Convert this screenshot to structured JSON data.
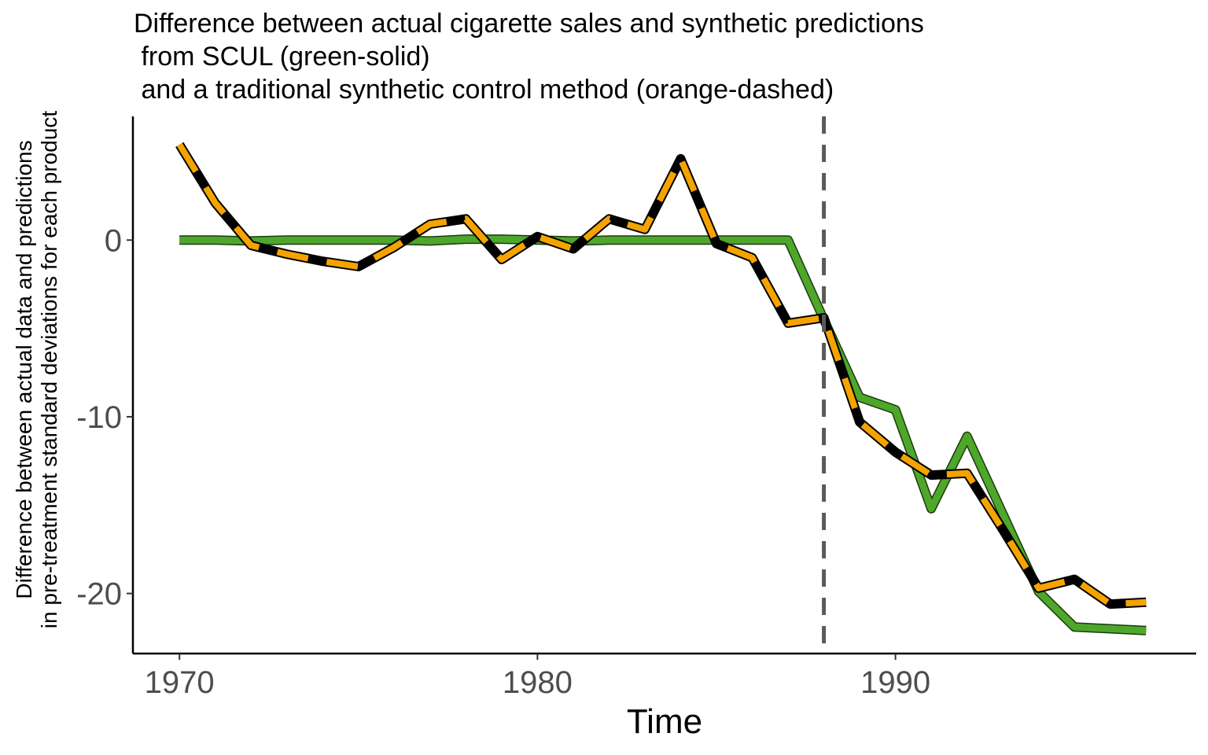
{
  "chart_data": {
    "type": "line",
    "title_lines": [
      "Difference between actual cigarette sales and synthetic predictions",
      " from SCUL (green-solid)",
      " and a traditional synthetic control method (orange-dashed)"
    ],
    "xlabel": "Time",
    "ylabel_lines": [
      "Difference between actual data and predictions",
      "in pre-treatment standard deviations for each product"
    ],
    "xlim": [
      1968.7,
      1998.4
    ],
    "ylim": [
      -23.4,
      7.0
    ],
    "x_ticks": [
      1970,
      1980,
      1990
    ],
    "y_ticks": [
      0,
      -10,
      -20
    ],
    "x_tick_labels": [
      "1970",
      "1980",
      "1990"
    ],
    "y_tick_labels": [
      "0",
      "-10",
      "-20"
    ],
    "treatment_line_x": 1988,
    "grid": false,
    "legend": "none",
    "colors": {
      "scul": "#4ea72a",
      "scul_outline": "#1a3a0d",
      "synth_dash": "#f5a300",
      "synth_base": "#000000",
      "treatment_line": "#5a5a5a",
      "tick_label": "#4d4d4d"
    },
    "x": [
      1970,
      1971,
      1972,
      1973,
      1974,
      1975,
      1976,
      1977,
      1978,
      1979,
      1980,
      1981,
      1982,
      1983,
      1984,
      1985,
      1986,
      1987,
      1988,
      1989,
      1990,
      1991,
      1992,
      1993,
      1994,
      1995,
      1996,
      1997
    ],
    "series": [
      {
        "id": "scul",
        "values": [
          0.0,
          0.0,
          -0.05,
          0.0,
          0.0,
          0.0,
          0.0,
          -0.05,
          0.05,
          0.05,
          0.0,
          -0.05,
          0.0,
          0.0,
          0.0,
          0.0,
          0.0,
          0.0,
          -4.5,
          -8.9,
          -9.6,
          -15.2,
          -11.1,
          -15.5,
          -19.9,
          -21.9,
          -22.0,
          -22.1
        ]
      },
      {
        "id": "synth",
        "values": [
          5.4,
          2.1,
          -0.3,
          -0.8,
          -1.2,
          -1.5,
          -0.4,
          0.9,
          1.2,
          -1.1,
          0.2,
          -0.5,
          1.2,
          0.6,
          4.6,
          -0.2,
          -1.0,
          -4.7,
          -4.4,
          -10.3,
          -12.0,
          -13.3,
          -13.2,
          -16.4,
          -19.7,
          -19.2,
          -20.6,
          -20.5
        ]
      }
    ]
  }
}
